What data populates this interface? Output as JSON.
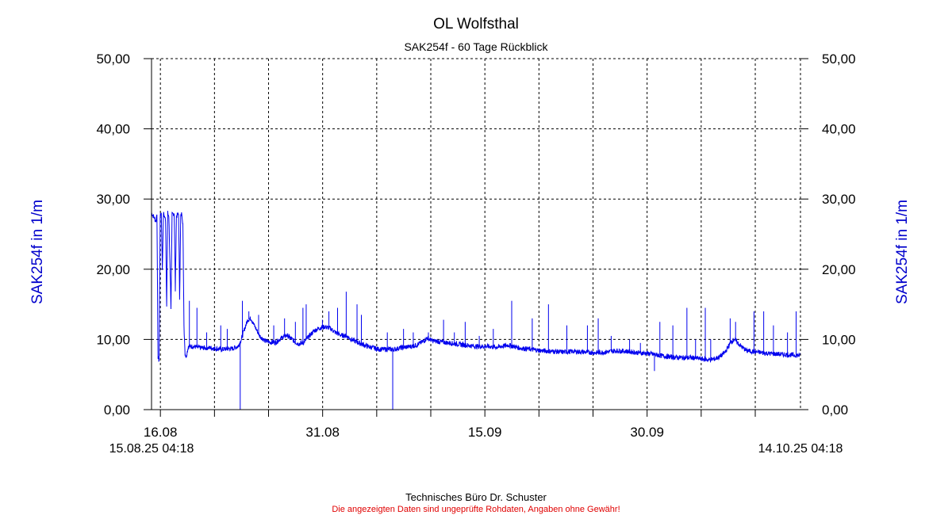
{
  "chart_data": {
    "type": "line",
    "title": "OL Wolfsthal",
    "subtitle": "SAK254f - 60 Tage Rückblick",
    "ylabel_left": "SAK254f in 1/m",
    "ylabel_right": "SAK254f in 1/m",
    "ylim": [
      0,
      50
    ],
    "yticks": [
      "0,00",
      "10,00",
      "20,00",
      "30,00",
      "40,00",
      "50,00"
    ],
    "xlim_days": [
      0,
      60
    ],
    "xtick_labels": [
      {
        "label": "16.08",
        "day": 0.82
      },
      {
        "label": "31.08",
        "day": 15.82
      },
      {
        "label": "15.09",
        "day": 30.82
      },
      {
        "label": "30.09",
        "day": 45.82
      }
    ],
    "start_label": "15.08.25 04:18",
    "end_label": "14.10.25 04:18",
    "grid": true,
    "series": [
      {
        "color": "#0000ee",
        "points": [
          [
            0.0,
            28.0
          ],
          [
            0.2,
            27.5
          ],
          [
            0.4,
            26.8
          ],
          [
            0.5,
            28.0
          ],
          [
            0.6,
            7.5
          ],
          [
            0.7,
            7.0
          ],
          [
            0.8,
            27.5
          ],
          [
            0.9,
            28.0
          ],
          [
            1.0,
            20.0
          ],
          [
            1.1,
            28.0
          ],
          [
            1.3,
            27.0
          ],
          [
            1.4,
            15.0
          ],
          [
            1.5,
            28.0
          ],
          [
            1.6,
            27.5
          ],
          [
            1.8,
            14.5
          ],
          [
            1.9,
            27.8
          ],
          [
            2.1,
            28.0
          ],
          [
            2.2,
            17.0
          ],
          [
            2.3,
            27.5
          ],
          [
            2.5,
            28.0
          ],
          [
            2.6,
            16.0
          ],
          [
            2.7,
            27.5
          ],
          [
            2.8,
            28.0
          ],
          [
            2.9,
            26.5
          ],
          [
            3.0,
            12.0
          ],
          [
            3.1,
            8.0
          ],
          [
            3.2,
            7.5
          ],
          [
            3.4,
            9.0
          ],
          [
            3.8,
            9.0
          ],
          [
            4.5,
            8.8
          ],
          [
            5.5,
            8.8
          ],
          [
            6.5,
            8.6
          ],
          [
            7.5,
            8.7
          ],
          [
            8.0,
            9.0
          ],
          [
            8.3,
            10.0
          ],
          [
            8.6,
            11.5
          ],
          [
            8.9,
            12.8
          ],
          [
            9.2,
            13.0
          ],
          [
            9.5,
            12.0
          ],
          [
            10.0,
            10.5
          ],
          [
            10.5,
            9.8
          ],
          [
            11.0,
            9.6
          ],
          [
            11.5,
            9.6
          ],
          [
            12.0,
            10.2
          ],
          [
            12.5,
            10.6
          ],
          [
            13.0,
            10.0
          ],
          [
            13.5,
            9.4
          ],
          [
            14.0,
            9.5
          ],
          [
            14.5,
            10.3
          ],
          [
            15.0,
            11.2
          ],
          [
            15.5,
            11.6
          ],
          [
            16.0,
            11.8
          ],
          [
            16.5,
            11.6
          ],
          [
            17.0,
            11.0
          ],
          [
            17.5,
            10.6
          ],
          [
            18.0,
            10.5
          ],
          [
            18.5,
            10.0
          ],
          [
            19.0,
            9.6
          ],
          [
            19.5,
            9.3
          ],
          [
            20.0,
            9.0
          ],
          [
            20.5,
            8.8
          ],
          [
            21.0,
            8.6
          ],
          [
            21.5,
            8.6
          ],
          [
            22.0,
            8.6
          ],
          [
            22.5,
            8.6
          ],
          [
            23.0,
            8.8
          ],
          [
            23.5,
            8.9
          ],
          [
            24.0,
            9.0
          ],
          [
            24.5,
            9.2
          ],
          [
            25.0,
            9.6
          ],
          [
            25.5,
            10.2
          ],
          [
            26.0,
            9.8
          ],
          [
            27.0,
            9.6
          ],
          [
            28.0,
            9.4
          ],
          [
            29.0,
            9.2
          ],
          [
            30.0,
            9.0
          ],
          [
            31.0,
            9.0
          ],
          [
            32.0,
            8.9
          ],
          [
            33.0,
            9.2
          ],
          [
            34.0,
            8.8
          ],
          [
            35.0,
            8.6
          ],
          [
            36.0,
            8.4
          ],
          [
            37.0,
            8.3
          ],
          [
            38.0,
            8.2
          ],
          [
            39.0,
            8.3
          ],
          [
            40.0,
            8.2
          ],
          [
            41.0,
            8.1
          ],
          [
            42.0,
            8.2
          ],
          [
            43.0,
            8.4
          ],
          [
            44.0,
            8.3
          ],
          [
            45.0,
            8.1
          ],
          [
            46.0,
            8.0
          ],
          [
            47.0,
            7.7
          ],
          [
            48.0,
            7.5
          ],
          [
            49.0,
            7.4
          ],
          [
            50.0,
            7.4
          ],
          [
            51.0,
            7.2
          ],
          [
            51.5,
            7.1
          ],
          [
            52.0,
            7.2
          ],
          [
            52.5,
            7.5
          ],
          [
            53.0,
            8.1
          ],
          [
            53.3,
            8.9
          ],
          [
            53.6,
            9.7
          ],
          [
            53.9,
            10.0
          ],
          [
            54.2,
            9.5
          ],
          [
            54.6,
            8.9
          ],
          [
            55.0,
            8.4
          ],
          [
            56.0,
            8.2
          ],
          [
            57.0,
            8.0
          ],
          [
            58.0,
            7.9
          ],
          [
            59.0,
            7.8
          ],
          [
            60.0,
            7.7
          ]
        ],
        "spikes": [
          [
            3.5,
            15.5
          ],
          [
            4.2,
            14.5
          ],
          [
            5.1,
            11.0
          ],
          [
            6.4,
            12.0
          ],
          [
            7.0,
            11.5
          ],
          [
            8.2,
            0.0
          ],
          [
            8.4,
            15.5
          ],
          [
            9.0,
            14.0
          ],
          [
            9.9,
            13.5
          ],
          [
            11.3,
            12.0
          ],
          [
            12.3,
            13.0
          ],
          [
            13.3,
            12.5
          ],
          [
            14.0,
            14.5
          ],
          [
            14.3,
            15.0
          ],
          [
            15.8,
            12.8
          ],
          [
            16.4,
            14.0
          ],
          [
            17.2,
            14.5
          ],
          [
            18.0,
            16.8
          ],
          [
            19.0,
            15.0
          ],
          [
            19.4,
            13.5
          ],
          [
            21.8,
            11.0
          ],
          [
            22.3,
            0.0
          ],
          [
            23.3,
            11.5
          ],
          [
            24.2,
            11.0
          ],
          [
            25.6,
            11.0
          ],
          [
            27.0,
            12.8
          ],
          [
            28.0,
            11.0
          ],
          [
            29.0,
            12.5
          ],
          [
            30.3,
            10.5
          ],
          [
            31.6,
            11.5
          ],
          [
            33.3,
            15.5
          ],
          [
            35.2,
            13.0
          ],
          [
            36.7,
            15.0
          ],
          [
            38.4,
            12.0
          ],
          [
            40.3,
            12.0
          ],
          [
            41.3,
            13.0
          ],
          [
            42.5,
            10.5
          ],
          [
            44.2,
            10.0
          ],
          [
            45.2,
            9.5
          ],
          [
            46.5,
            5.5
          ],
          [
            47.0,
            12.5
          ],
          [
            48.2,
            12.0
          ],
          [
            49.5,
            14.5
          ],
          [
            50.3,
            10.0
          ],
          [
            51.2,
            14.5
          ],
          [
            51.7,
            10.0
          ],
          [
            53.5,
            13.0
          ],
          [
            54.0,
            12.5
          ],
          [
            55.7,
            14.0
          ],
          [
            56.6,
            14.0
          ],
          [
            57.5,
            12.0
          ],
          [
            58.8,
            11.0
          ],
          [
            59.6,
            14.0
          ]
        ]
      }
    ]
  },
  "footer": {
    "credit": "Technisches Büro Dr. Schuster",
    "disclaimer": "Die angezeigten Daten sind ungeprüfte Rohdaten, Angaben ohne Gewähr!"
  }
}
